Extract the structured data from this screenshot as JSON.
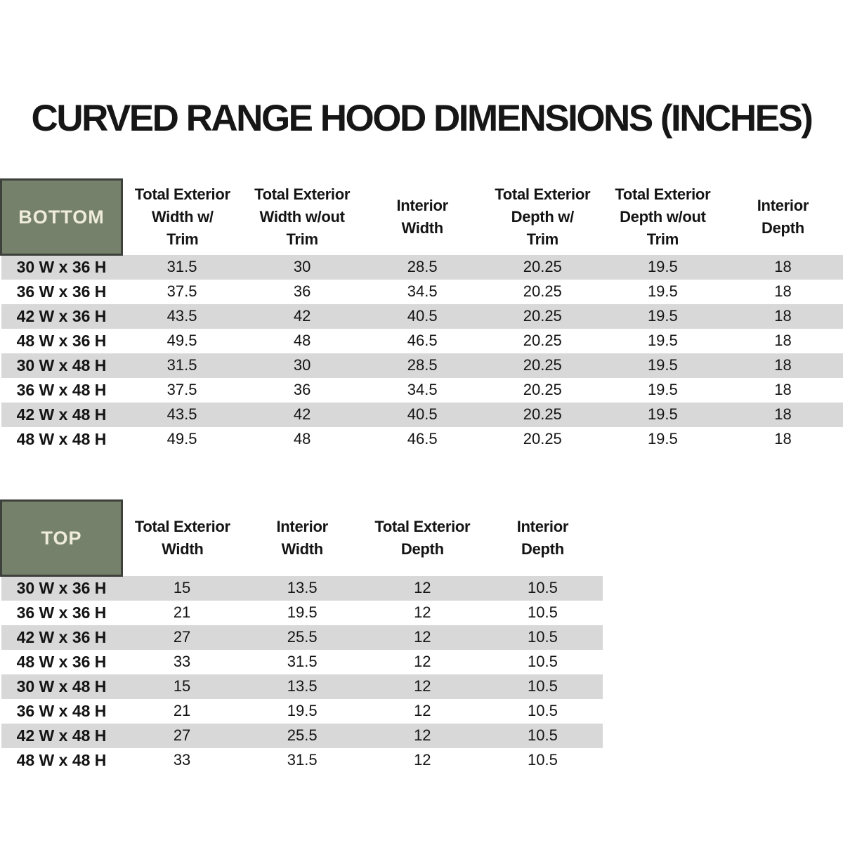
{
  "title": "CURVED RANGE HOOD DIMENSIONS (INCHES)",
  "colors": {
    "header_cell_green": "#75816A",
    "corner_border": "#3D403B",
    "corner_text": "#F0ECDD",
    "row_stripe_gray": "#D8D8D8",
    "text": "#141414"
  },
  "bottom_table": {
    "label": "BOTTOM",
    "columns": [
      "Total Exterior\nWidth w/\nTrim",
      "Total Exterior\nWidth w/out\nTrim",
      "Interior\nWidth",
      "Total Exterior\nDepth w/\nTrim",
      "Total Exterior\nDepth w/out\nTrim",
      "Interior\nDepth"
    ],
    "rows": [
      {
        "size": "30 W x 36 H",
        "values": [
          "31.5",
          "30",
          "28.5",
          "20.25",
          "19.5",
          "18"
        ]
      },
      {
        "size": "36 W x 36 H",
        "values": [
          "37.5",
          "36",
          "34.5",
          "20.25",
          "19.5",
          "18"
        ]
      },
      {
        "size": "42 W x 36 H",
        "values": [
          "43.5",
          "42",
          "40.5",
          "20.25",
          "19.5",
          "18"
        ]
      },
      {
        "size": "48 W x 36 H",
        "values": [
          "49.5",
          "48",
          "46.5",
          "20.25",
          "19.5",
          "18"
        ]
      },
      {
        "size": "30 W x 48 H",
        "values": [
          "31.5",
          "30",
          "28.5",
          "20.25",
          "19.5",
          "18"
        ]
      },
      {
        "size": "36 W x 48 H",
        "values": [
          "37.5",
          "36",
          "34.5",
          "20.25",
          "19.5",
          "18"
        ]
      },
      {
        "size": "42 W x 48 H",
        "values": [
          "43.5",
          "42",
          "40.5",
          "20.25",
          "19.5",
          "18"
        ]
      },
      {
        "size": "48 W x 48 H",
        "values": [
          "49.5",
          "48",
          "46.5",
          "20.25",
          "19.5",
          "18"
        ]
      }
    ]
  },
  "top_table": {
    "label": "TOP",
    "columns": [
      "Total Exterior\nWidth",
      "Interior\nWidth",
      "Total Exterior\nDepth",
      "Interior\nDepth"
    ],
    "rows": [
      {
        "size": "30 W x 36 H",
        "values": [
          "15",
          "13.5",
          "12",
          "10.5"
        ]
      },
      {
        "size": "36 W x 36 H",
        "values": [
          "21",
          "19.5",
          "12",
          "10.5"
        ]
      },
      {
        "size": "42 W x 36 H",
        "values": [
          "27",
          "25.5",
          "12",
          "10.5"
        ]
      },
      {
        "size": "48 W x 36 H",
        "values": [
          "33",
          "31.5",
          "12",
          "10.5"
        ]
      },
      {
        "size": "30 W x 48 H",
        "values": [
          "15",
          "13.5",
          "12",
          "10.5"
        ]
      },
      {
        "size": "36 W x 48 H",
        "values": [
          "21",
          "19.5",
          "12",
          "10.5"
        ]
      },
      {
        "size": "42 W x 48 H",
        "values": [
          "27",
          "25.5",
          "12",
          "10.5"
        ]
      },
      {
        "size": "48 W x 48 H",
        "values": [
          "33",
          "31.5",
          "12",
          "10.5"
        ]
      }
    ]
  }
}
